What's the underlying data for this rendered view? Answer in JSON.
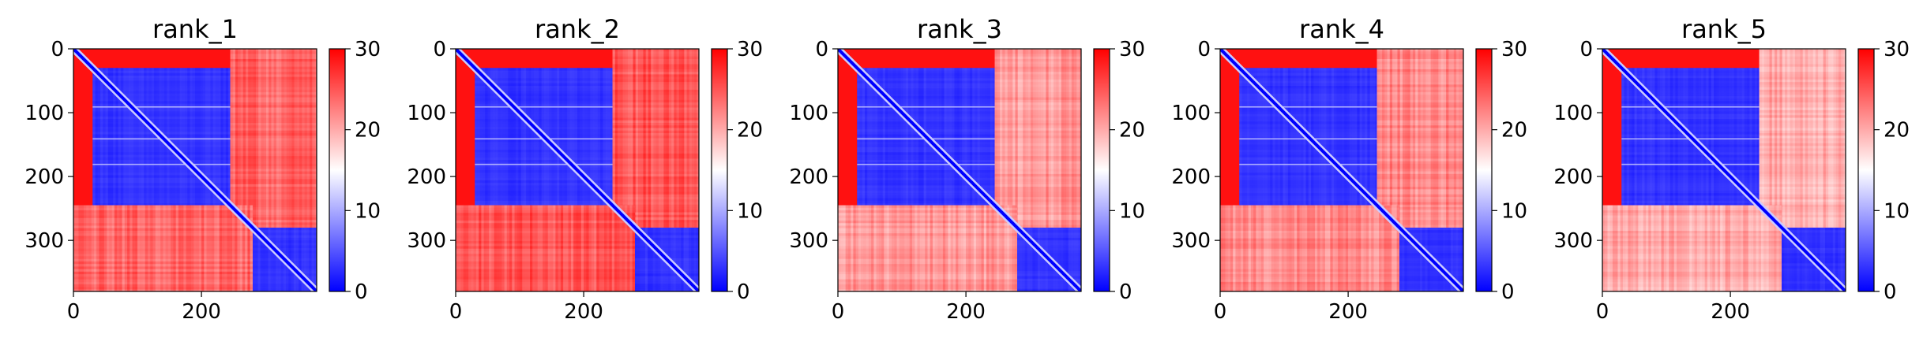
{
  "figure": {
    "colormap": "bwr",
    "colormap_stops": [
      "#0000ff",
      "#ffffff",
      "#ff0000"
    ]
  },
  "chart_data": [
    {
      "type": "heatmap",
      "title": "rank_1",
      "variant": 1,
      "xlim": [
        0,
        380
      ],
      "ylim": [
        380,
        0
      ],
      "xticks": [
        0,
        200
      ],
      "xtick_labels": [
        "0",
        "200"
      ],
      "yticks": [
        0,
        100,
        200,
        300
      ],
      "ytick_labels": [
        "0",
        "100",
        "200",
        "300"
      ],
      "colorbar": {
        "range": [
          0,
          30
        ],
        "ticks": [
          0,
          10,
          20,
          30
        ],
        "tick_labels": [
          "0",
          "10",
          "20",
          "30"
        ]
      },
      "blocks": [
        {
          "x": [
            30,
            245
          ],
          "y": [
            30,
            245
          ],
          "value": 3
        },
        {
          "x": [
            280,
            380
          ],
          "y": [
            280,
            380
          ],
          "value": 3
        },
        {
          "x": [
            245,
            380
          ],
          "y": [
            0,
            280
          ],
          "value": 24
        },
        {
          "x": [
            0,
            280
          ],
          "y": [
            245,
            380
          ],
          "value": 24
        }
      ],
      "background_value": 29,
      "diagonal_value": 0,
      "stripe_rows": [
        90,
        140,
        180
      ]
    },
    {
      "type": "heatmap",
      "title": "rank_2",
      "variant": 2,
      "xlim": [
        0,
        380
      ],
      "ylim": [
        380,
        0
      ],
      "xticks": [
        0,
        200
      ],
      "xtick_labels": [
        "0",
        "200"
      ],
      "yticks": [
        0,
        100,
        200,
        300
      ],
      "ytick_labels": [
        "0",
        "100",
        "200",
        "300"
      ],
      "colorbar": {
        "range": [
          0,
          30
        ],
        "ticks": [
          0,
          10,
          20,
          30
        ],
        "tick_labels": [
          "0",
          "10",
          "20",
          "30"
        ]
      },
      "blocks": [
        {
          "x": [
            30,
            245
          ],
          "y": [
            30,
            245
          ],
          "value": 3
        },
        {
          "x": [
            280,
            380
          ],
          "y": [
            280,
            380
          ],
          "value": 3
        },
        {
          "x": [
            245,
            380
          ],
          "y": [
            0,
            280
          ],
          "value": 25
        },
        {
          "x": [
            0,
            280
          ],
          "y": [
            245,
            380
          ],
          "value": 25
        }
      ],
      "background_value": 29,
      "diagonal_value": 0,
      "stripe_rows": [
        90,
        140,
        180
      ]
    },
    {
      "type": "heatmap",
      "title": "rank_3",
      "variant": 3,
      "xlim": [
        0,
        380
      ],
      "ylim": [
        380,
        0
      ],
      "xticks": [
        0,
        200
      ],
      "xtick_labels": [
        "0",
        "200"
      ],
      "yticks": [
        0,
        100,
        200,
        300
      ],
      "ytick_labels": [
        "0",
        "100",
        "200",
        "300"
      ],
      "colorbar": {
        "range": [
          0,
          30
        ],
        "ticks": [
          0,
          10,
          20,
          30
        ],
        "tick_labels": [
          "0",
          "10",
          "20",
          "30"
        ]
      },
      "blocks": [
        {
          "x": [
            30,
            245
          ],
          "y": [
            30,
            245
          ],
          "value": 3
        },
        {
          "x": [
            280,
            380
          ],
          "y": [
            280,
            380
          ],
          "value": 3
        },
        {
          "x": [
            245,
            380
          ],
          "y": [
            0,
            280
          ],
          "value": 21
        },
        {
          "x": [
            0,
            280
          ],
          "y": [
            245,
            380
          ],
          "value": 21
        }
      ],
      "background_value": 29,
      "diagonal_value": 0,
      "stripe_rows": [
        90,
        140,
        180
      ]
    },
    {
      "type": "heatmap",
      "title": "rank_4",
      "variant": 4,
      "xlim": [
        0,
        380
      ],
      "ylim": [
        380,
        0
      ],
      "xticks": [
        0,
        200
      ],
      "xtick_labels": [
        "0",
        "200"
      ],
      "yticks": [
        0,
        100,
        200,
        300
      ],
      "ytick_labels": [
        "0",
        "100",
        "200",
        "300"
      ],
      "colorbar": {
        "range": [
          0,
          30
        ],
        "ticks": [
          0,
          10,
          20,
          30
        ],
        "tick_labels": [
          "0",
          "10",
          "20",
          "30"
        ]
      },
      "blocks": [
        {
          "x": [
            30,
            245
          ],
          "y": [
            30,
            245
          ],
          "value": 3
        },
        {
          "x": [
            280,
            380
          ],
          "y": [
            280,
            380
          ],
          "value": 3
        },
        {
          "x": [
            245,
            380
          ],
          "y": [
            0,
            280
          ],
          "value": 22
        },
        {
          "x": [
            0,
            280
          ],
          "y": [
            245,
            380
          ],
          "value": 22
        }
      ],
      "background_value": 29,
      "diagonal_value": 0,
      "stripe_rows": [
        90,
        140,
        180
      ]
    },
    {
      "type": "heatmap",
      "title": "rank_5",
      "variant": 5,
      "xlim": [
        0,
        380
      ],
      "ylim": [
        380,
        0
      ],
      "xticks": [
        0,
        200
      ],
      "xtick_labels": [
        "0",
        "200"
      ],
      "yticks": [
        0,
        100,
        200,
        300
      ],
      "ytick_labels": [
        "0",
        "100",
        "200",
        "300"
      ],
      "colorbar": {
        "range": [
          0,
          30
        ],
        "ticks": [
          0,
          10,
          20,
          30
        ],
        "tick_labels": [
          "0",
          "10",
          "20",
          "30"
        ]
      },
      "blocks": [
        {
          "x": [
            30,
            245
          ],
          "y": [
            30,
            245
          ],
          "value": 3
        },
        {
          "x": [
            280,
            380
          ],
          "y": [
            280,
            380
          ],
          "value": 3
        },
        {
          "x": [
            245,
            380
          ],
          "y": [
            0,
            280
          ],
          "value": 20
        },
        {
          "x": [
            0,
            280
          ],
          "y": [
            245,
            380
          ],
          "value": 20
        }
      ],
      "background_value": 29,
      "diagonal_value": 0,
      "stripe_rows": [
        90,
        140,
        180
      ]
    }
  ]
}
